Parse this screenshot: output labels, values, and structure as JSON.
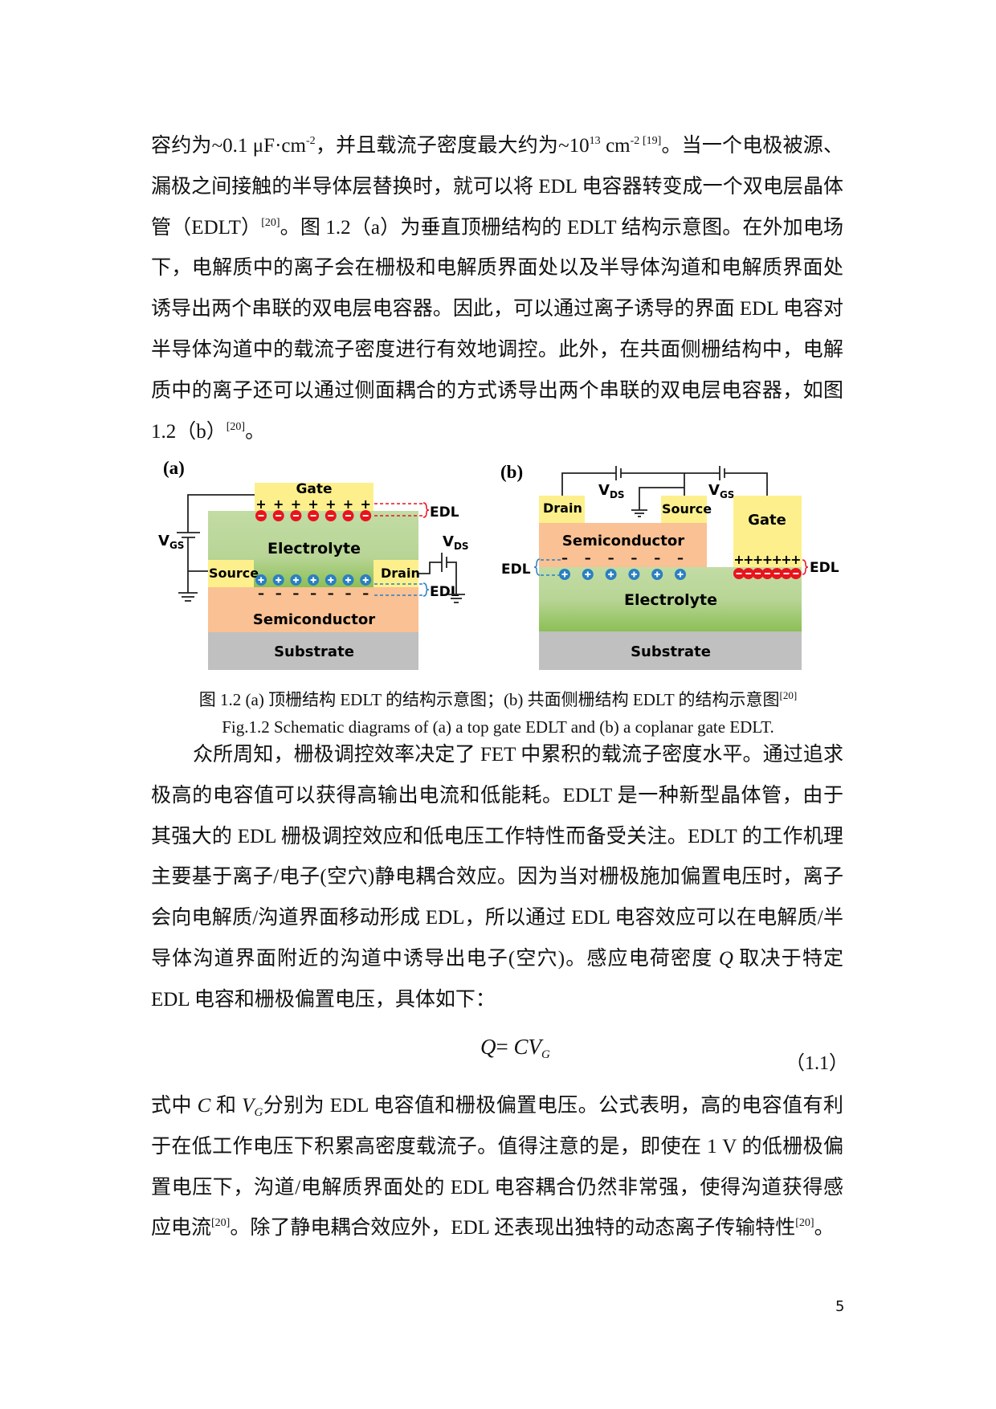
{
  "paragraph1": [
    [
      {
        "t": "容约为~0.1 μF·cm"
      },
      {
        "t": "-2",
        "f": "sup"
      },
      {
        "t": "，并且载流子密度最大约为~10"
      },
      {
        "t": "13",
        "f": "sup"
      },
      {
        "t": " cm"
      },
      {
        "t": "-2 [19]",
        "f": "sup"
      },
      {
        "t": "。当一个电极被源、"
      }
    ],
    [
      {
        "t": "漏极之间接触的半导体层替换时，就可以将 EDL 电容器转变成一个双电层晶体"
      }
    ],
    [
      {
        "t": "管（EDLT）"
      },
      {
        "t": "[20]",
        "f": "sup"
      },
      {
        "t": "。图 1.2（a）为垂直顶栅结构的 EDLT 结构示意图。在外加电场"
      }
    ],
    [
      {
        "t": "下，电解质中的离子会在栅极和电解质界面处以及半导体沟道和电解质界面处"
      }
    ],
    [
      {
        "t": "诱导出两个串联的双电层电容器。因此，可以通过离子诱导的界面 EDL 电容对"
      }
    ],
    [
      {
        "t": "半导体沟道中的载流子密度进行有效地调控。此外，在共面侧栅结构中，电解"
      }
    ],
    [
      {
        "t": "质中的离子还可以通过侧面耦合的方式诱导出两个串联的双电层电容器，如图"
      }
    ],
    [
      {
        "t": "1.2（b）"
      },
      {
        "t": "[20]",
        "f": "sup"
      },
      {
        "t": "。"
      }
    ]
  ],
  "figure": {
    "panel_a": {
      "label": "(a)",
      "gate": "Gate",
      "electrolyte": "Electrolyte",
      "source": "Source",
      "drain": "Drain",
      "semiconductor": "Semiconductor",
      "substrate": "Substrate",
      "edl_top": "EDL",
      "edl_bottom": "EDL",
      "vgs": "V",
      "vgs_sub": "GS",
      "vds": "V",
      "vds_sub": "DS"
    },
    "panel_b": {
      "label": "(b)",
      "drain": "Drain",
      "source": "Source",
      "gate": "Gate",
      "semiconductor": "Semiconductor",
      "electrolyte": "Electrolyte",
      "substrate": "Substrate",
      "edl_left": "EDL",
      "edl_right": "EDL",
      "vds": "V",
      "vds_sub": "DS",
      "vgs": "V",
      "vgs_sub": "GS"
    },
    "colors": {
      "gate": "#fdf08c",
      "electrolyte_top": "#c2dca4",
      "electrolyte_bottom": "#8cbf55",
      "semiconductor": "#f9c194",
      "substrate": "#c0c0c0",
      "anion": "#e8141c",
      "cation": "#2a7fc0"
    },
    "caption_cn": [
      {
        "t": "图 1.2 (a) 顶栅结构 EDLT 的结构示意图；(b) 共面侧栅结构 EDLT 的结构示意图"
      },
      {
        "t": "[20]",
        "f": "sup"
      }
    ],
    "caption_en": "Fig.1.2 Schematic diagrams of (a) a top gate EDLT and (b) a coplanar gate EDLT."
  },
  "paragraph2": [
    [
      {
        "t": "众所周知，栅极调控效率决定了 FET 中累积的载流子密度水平。通过追求"
      }
    ],
    [
      {
        "t": "极高的电容值可以获得高输出电流和低能耗。EDLT 是一种新型晶体管，由于"
      }
    ],
    [
      {
        "t": "其强大的 EDL 栅极调控效应和低电压工作特性而备受关注。EDLT 的工作机理"
      }
    ],
    [
      {
        "t": "主要基于离子/电子(空穴)静电耦合效应。因为当对栅极施加偏置电压时，离子"
      }
    ],
    [
      {
        "t": "会向电解质/沟道界面移动形成 EDL，所以通过 EDL 电容效应可以在电解质/半"
      }
    ],
    [
      {
        "t": "导体沟道界面附近的沟道中诱导出电子(空穴)。感应电荷密度 "
      },
      {
        "t": "Q",
        "f": "i"
      },
      {
        "t": " 取决于特定"
      }
    ],
    [
      {
        "t": "EDL 电容和栅极偏置电压，具体如下："
      }
    ]
  ],
  "equation": {
    "lhs": "Q",
    "eq": "= ",
    "c": "CV",
    "sub": "G",
    "number": "（1.1）"
  },
  "paragraph3": [
    [
      {
        "t": "式中 "
      },
      {
        "t": "C",
        "f": "i"
      },
      {
        "t": " 和 "
      },
      {
        "t": "V",
        "f": "i"
      },
      {
        "t": "G",
        "f": "isub"
      },
      {
        "t": "分别为 EDL 电容值和栅极偏置电压。公式表明，高的电容值有利"
      }
    ],
    [
      {
        "t": "于在低工作电压下积累高密度载流子。值得注意的是，即使在 1 V 的低栅极偏"
      }
    ],
    [
      {
        "t": "置电压下，沟道/电解质界面处的 EDL 电容耦合仍然非常强，使得沟道获得感"
      }
    ],
    [
      {
        "t": "应电流"
      },
      {
        "t": "[20]",
        "f": "sup"
      },
      {
        "t": "。除了静电耦合效应外，EDL 还表现出独特的动态离子传输特性"
      },
      {
        "t": "[20]",
        "f": "sup"
      },
      {
        "t": "。"
      }
    ]
  ],
  "page_number": "5"
}
